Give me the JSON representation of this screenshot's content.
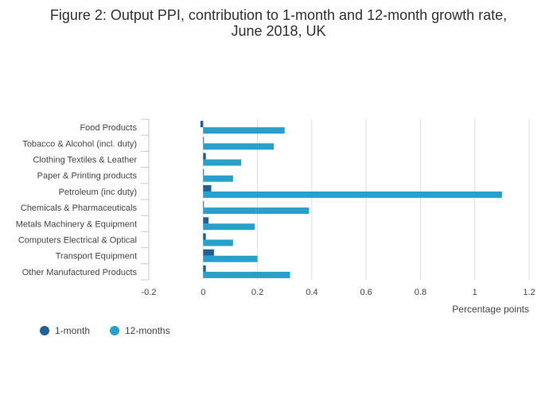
{
  "chart_data": {
    "type": "bar",
    "orientation": "horizontal",
    "title_lines": [
      "Figure 2: Output PPI, contribution to 1-month and 12-month growth rate,",
      "June 2018, UK"
    ],
    "xlabel": "Percentage points",
    "ylabel": "",
    "xlim": [
      -0.2,
      1.2
    ],
    "x_ticks": [
      -0.2,
      0,
      0.2,
      0.4,
      0.6,
      0.8,
      1,
      1.2
    ],
    "x_tick_labels": [
      "-0.2",
      "0",
      "0.2",
      "0.4",
      "0.6",
      "0.8",
      "1",
      "1.2"
    ],
    "grid": true,
    "legend_position": "bottom-left",
    "categories": [
      "Food Products",
      "Tobacco & Alcohol (incl. duty)",
      "Clothing Textiles & Leather",
      "Paper & Printing products",
      "Petroleum (inc duty)",
      "Chemicals & Pharmaceuticals",
      "Metals Machinery & Equipment",
      "Computers Electrical & Optical",
      "Transport Equipment",
      "Other Manufactured Products"
    ],
    "series": [
      {
        "name": "1-month",
        "color": "#206095",
        "values": [
          -0.01,
          0.0,
          0.01,
          0.0,
          0.03,
          0.0,
          0.02,
          0.01,
          0.04,
          0.01
        ]
      },
      {
        "name": "12-months",
        "color": "#27a0cc",
        "values": [
          0.3,
          0.26,
          0.14,
          0.11,
          1.1,
          0.39,
          0.19,
          0.11,
          0.2,
          0.32
        ]
      }
    ]
  },
  "colors": {
    "grid": "#dddddd",
    "axis": "#c8c8dc",
    "text": "#444444"
  }
}
